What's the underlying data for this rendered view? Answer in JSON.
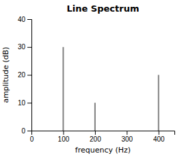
{
  "chart_data": {
    "type": "stem",
    "title": "Line Spectrum",
    "xlabel": "frequency (Hz)",
    "ylabel": "amplitude (dB)",
    "x": [
      100,
      200,
      400
    ],
    "values": [
      30,
      10,
      20
    ],
    "color": "#808080",
    "xlim": [
      0,
      450
    ],
    "ylim": [
      0,
      40
    ],
    "xticks": [
      0,
      100,
      200,
      300,
      400
    ],
    "yticks": [
      0,
      10,
      20,
      30,
      40
    ]
  }
}
